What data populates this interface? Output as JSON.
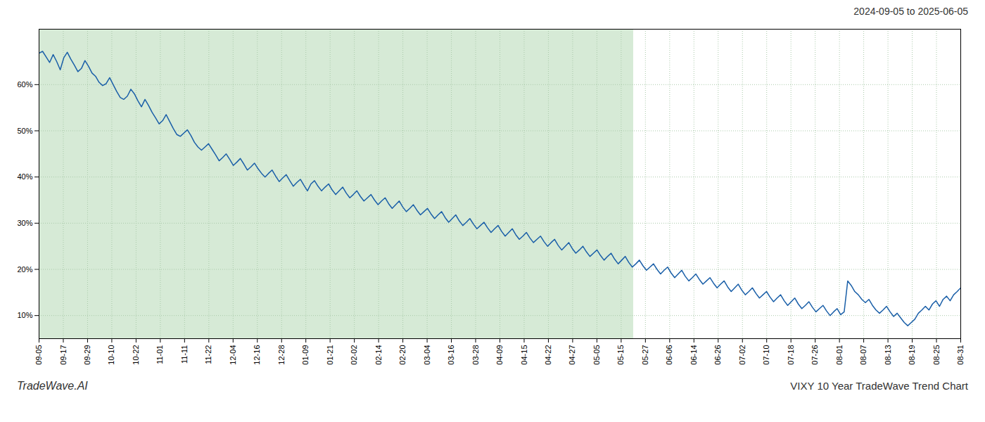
{
  "chart_data": {
    "type": "line",
    "title": "2024-09-05 to 2025-06-05",
    "annotations": [
      "TradeWave.AI",
      "VIXY 10 Year TradeWave Trend Chart"
    ],
    "color": "#1a5fa8",
    "grid": true,
    "xlim": [
      0,
      261
    ],
    "xticks": [
      {
        "value": 0,
        "label": "09-05"
      },
      {
        "value": 6.868421,
        "label": "09-17"
      },
      {
        "value": 13.736842,
        "label": "09-29"
      },
      {
        "value": 20.605263,
        "label": "10-10"
      },
      {
        "value": 27.473684,
        "label": "10-22"
      },
      {
        "value": 34.342105,
        "label": "11-01"
      },
      {
        "value": 41.210526,
        "label": "11-11"
      },
      {
        "value": 48.078947,
        "label": "11-22"
      },
      {
        "value": 54.947368,
        "label": "12-04"
      },
      {
        "value": 61.815789,
        "label": "12-16"
      },
      {
        "value": 68.684211,
        "label": "12-28"
      },
      {
        "value": 75.552632,
        "label": "01-09"
      },
      {
        "value": 82.421053,
        "label": "01-21"
      },
      {
        "value": 89.289474,
        "label": "02-02"
      },
      {
        "value": 96.157895,
        "label": "02-14"
      },
      {
        "value": 103.026316,
        "label": "02-20"
      },
      {
        "value": 109.894737,
        "label": "03-04"
      },
      {
        "value": 116.763158,
        "label": "03-16"
      },
      {
        "value": 123.631579,
        "label": "03-28"
      },
      {
        "value": 130.5,
        "label": "04-09"
      },
      {
        "value": 137.368421,
        "label": "04-15"
      },
      {
        "value": 144.236842,
        "label": "04-22"
      },
      {
        "value": 151.105263,
        "label": "04-27"
      },
      {
        "value": 157.973684,
        "label": "05-05"
      },
      {
        "value": 164.842105,
        "label": "05-15"
      },
      {
        "value": 171.710526,
        "label": "05-27"
      },
      {
        "value": 178.578947,
        "label": "06-06"
      },
      {
        "value": 185.447368,
        "label": "06-14"
      },
      {
        "value": 192.315789,
        "label": "06-26"
      },
      {
        "value": 199.184211,
        "label": "07-02"
      },
      {
        "value": 206.052632,
        "label": "07-10"
      },
      {
        "value": 212.921053,
        "label": "07-18"
      },
      {
        "value": 219.789474,
        "label": "07-26"
      },
      {
        "value": 226.657895,
        "label": "08-01"
      },
      {
        "value": 233.526316,
        "label": "08-07"
      },
      {
        "value": 240.394737,
        "label": "08-13"
      },
      {
        "value": 247.263158,
        "label": "08-19"
      },
      {
        "value": 254.131579,
        "label": "08-25"
      },
      {
        "value": 261,
        "label": "08-31"
      }
    ],
    "ylim": [
      5,
      72
    ],
    "yticks": [
      {
        "value": 10,
        "label": "10%"
      },
      {
        "value": 20,
        "label": "20%"
      },
      {
        "value": 30,
        "label": "30%"
      },
      {
        "value": 40,
        "label": "40%"
      },
      {
        "value": 50,
        "label": "50%"
      },
      {
        "value": 60,
        "label": "60%"
      }
    ],
    "shaded_span": {
      "x": [
        0,
        168.345
      ],
      "color": "#d6ead6"
    },
    "values": [
      66.8,
      67.2,
      66.0,
      64.8,
      66.5,
      65.0,
      63.2,
      65.8,
      67.0,
      65.5,
      64.2,
      62.8,
      63.5,
      65.2,
      64.0,
      62.5,
      61.8,
      60.5,
      59.8,
      60.2,
      61.5,
      60.0,
      58.5,
      57.2,
      56.8,
      57.5,
      59.0,
      58.0,
      56.5,
      55.2,
      56.8,
      55.5,
      54.0,
      52.8,
      51.5,
      52.2,
      53.5,
      52.0,
      50.5,
      49.2,
      48.8,
      49.5,
      50.2,
      49.0,
      47.5,
      46.5,
      45.8,
      46.5,
      47.2,
      46.0,
      44.8,
      43.5,
      44.2,
      45.0,
      43.8,
      42.5,
      43.2,
      44.0,
      42.8,
      41.5,
      42.2,
      43.0,
      41.8,
      40.8,
      40.0,
      40.8,
      41.5,
      40.2,
      39.0,
      39.8,
      40.5,
      39.2,
      38.0,
      38.8,
      39.5,
      38.2,
      37.0,
      38.5,
      39.2,
      38.0,
      37.0,
      37.8,
      38.5,
      37.2,
      36.2,
      37.0,
      37.8,
      36.5,
      35.5,
      36.2,
      37.0,
      35.8,
      34.8,
      35.5,
      36.2,
      35.0,
      34.0,
      34.8,
      35.5,
      34.2,
      33.2,
      34.0,
      34.8,
      33.5,
      32.5,
      33.2,
      34.0,
      32.8,
      31.8,
      32.5,
      33.2,
      32.0,
      31.0,
      31.8,
      32.5,
      31.2,
      30.2,
      31.0,
      31.8,
      30.5,
      29.5,
      30.2,
      31.0,
      29.8,
      28.8,
      29.5,
      30.2,
      29.0,
      28.0,
      28.8,
      29.5,
      28.2,
      27.2,
      28.0,
      28.8,
      27.5,
      26.5,
      27.2,
      28.0,
      26.8,
      25.8,
      26.5,
      27.2,
      26.0,
      25.0,
      25.8,
      26.5,
      25.2,
      24.2,
      25.0,
      25.8,
      24.5,
      23.5,
      24.2,
      25.0,
      23.8,
      22.8,
      23.5,
      24.2,
      23.0,
      22.0,
      22.8,
      23.5,
      22.2,
      21.2,
      22.0,
      22.8,
      21.5,
      20.5,
      21.2,
      22.0,
      20.8,
      19.8,
      20.5,
      21.2,
      20.0,
      19.0,
      19.8,
      20.5,
      19.2,
      18.2,
      19.0,
      19.8,
      18.5,
      17.5,
      18.2,
      19.0,
      17.8,
      16.8,
      17.5,
      18.2,
      17.0,
      16.0,
      16.8,
      17.5,
      16.2,
      15.2,
      16.0,
      16.8,
      15.5,
      14.5,
      15.2,
      16.0,
      14.8,
      13.8,
      14.5,
      15.2,
      14.0,
      13.0,
      13.8,
      14.5,
      13.2,
      12.2,
      13.0,
      13.8,
      12.5,
      11.5,
      12.2,
      13.0,
      11.8,
      10.8,
      11.5,
      12.2,
      11.0,
      10.0,
      10.8,
      11.5,
      10.2,
      10.8,
      17.5,
      16.5,
      15.2,
      14.5,
      13.5,
      12.8,
      13.5,
      12.2,
      11.2,
      10.5,
      11.2,
      12.0,
      10.8,
      9.8,
      10.5,
      9.5,
      8.5,
      7.8,
      8.5,
      9.2,
      10.5,
      11.2,
      12.0,
      11.2,
      12.5,
      13.2,
      12.0,
      13.5,
      14.2,
      13.2,
      14.5,
      15.2,
      16.0
    ]
  }
}
